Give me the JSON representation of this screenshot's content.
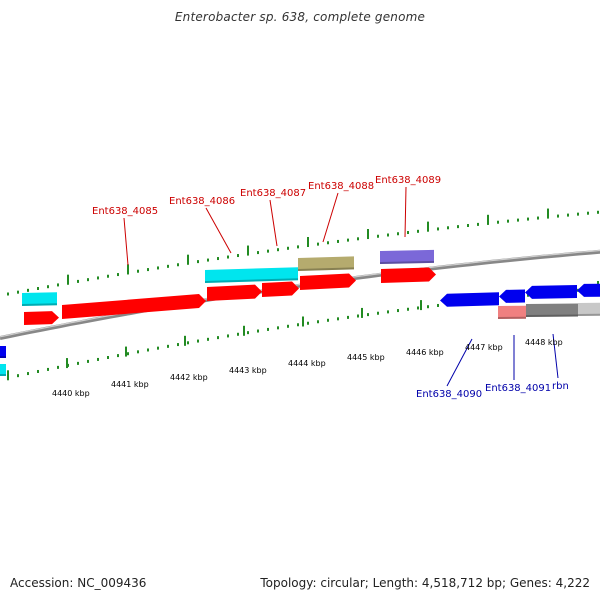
{
  "title": "Enterobacter sp. 638, complete genome",
  "footer": {
    "accession": "Accession: NC_009436",
    "summary": "Topology: circular; Length: 4,518,712 bp; Genes: 4,222"
  },
  "colors": {
    "gene_forward": "#ff0000",
    "gene_reverse": "#0000ee",
    "feature_cyan": "#00e5ee",
    "feature_olive": "#b5ab6e",
    "feature_purple": "#7b68d8",
    "feature_grey": "#808080",
    "feature_pink": "#f08080",
    "backbone": "#888888",
    "ticks": "#228b22",
    "label_forward": "#cc0000",
    "label_reverse": "#0000aa",
    "scale_text": "#222222"
  },
  "scale_labels": [
    "4440 kbp",
    "4441 kbp",
    "4442 kbp",
    "4443 kbp",
    "4444 kbp",
    "4445 kbp",
    "4446 kbp",
    "4447 kbp",
    "4448 kbp"
  ],
  "forward_gene_labels": [
    "Ent638_4085",
    "Ent638_4086",
    "Ent638_4087",
    "Ent638_4088",
    "Ent638_4089"
  ],
  "reverse_gene_labels": [
    "Ent638_4090",
    "Ent638_4091",
    "rbn"
  ]
}
